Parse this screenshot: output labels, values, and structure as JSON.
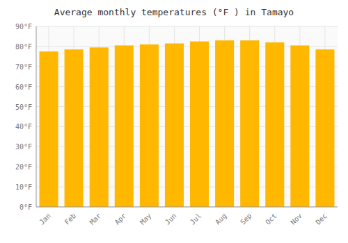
{
  "chart_data": {
    "type": "bar",
    "title": "Average monthly temperatures (°F ) in Tamayo",
    "categories": [
      "Jan",
      "Feb",
      "Mar",
      "Apr",
      "May",
      "Jun",
      "Jul",
      "Aug",
      "Sep",
      "Oct",
      "Nov",
      "Dec"
    ],
    "values": [
      77.5,
      78.5,
      79.5,
      80.5,
      81.0,
      81.5,
      82.5,
      83.0,
      83.0,
      82.0,
      80.5,
      78.5
    ],
    "color": "#FFB700",
    "ylim": [
      0,
      90
    ],
    "yticks": [
      {
        "value": 0,
        "label": "0°F"
      },
      {
        "value": 10,
        "label": "10°F"
      },
      {
        "value": 20,
        "label": "20°F"
      },
      {
        "value": 30,
        "label": "30°F"
      },
      {
        "value": 40,
        "label": "40°F"
      },
      {
        "value": 50,
        "label": "50°F"
      },
      {
        "value": 60,
        "label": "60°F"
      },
      {
        "value": 70,
        "label": "70°F"
      },
      {
        "value": 80,
        "label": "80°F"
      },
      {
        "value": 90,
        "label": "90°F"
      }
    ],
    "grid": true
  }
}
